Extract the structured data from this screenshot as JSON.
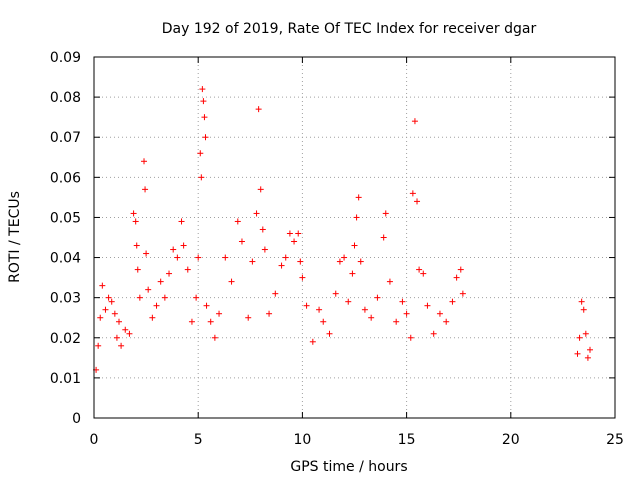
{
  "chart_data": {
    "type": "scatter",
    "title": "Day 192 of 2019, Rate Of TEC Index for receiver dgar",
    "xlabel": "GPS time / hours",
    "ylabel": "ROTI / TECUs",
    "xlim": [
      0,
      25
    ],
    "ylim": [
      0,
      0.09
    ],
    "x_ticks": [
      "0",
      "5",
      "10",
      "15",
      "20",
      "25"
    ],
    "y_ticks": [
      "0",
      "0.01",
      "0.02",
      "0.03",
      "0.04",
      "0.05",
      "0.06",
      "0.07",
      "0.08",
      "0.09"
    ],
    "grid": true,
    "marker": "+",
    "color": "#ff0000",
    "series": [
      {
        "points": [
          [
            0.1,
            0.012
          ],
          [
            0.2,
            0.018
          ],
          [
            0.3,
            0.025
          ],
          [
            0.4,
            0.033
          ],
          [
            0.55,
            0.027
          ],
          [
            0.7,
            0.03
          ],
          [
            0.85,
            0.029
          ],
          [
            1.0,
            0.026
          ],
          [
            1.1,
            0.02
          ],
          [
            1.2,
            0.024
          ],
          [
            1.3,
            0.018
          ],
          [
            1.5,
            0.022
          ],
          [
            1.7,
            0.021
          ],
          [
            1.9,
            0.051
          ],
          [
            2.0,
            0.049
          ],
          [
            2.05,
            0.043
          ],
          [
            2.1,
            0.037
          ],
          [
            2.2,
            0.03
          ],
          [
            2.4,
            0.064
          ],
          [
            2.45,
            0.057
          ],
          [
            2.5,
            0.041
          ],
          [
            2.6,
            0.032
          ],
          [
            2.8,
            0.025
          ],
          [
            3.0,
            0.028
          ],
          [
            3.2,
            0.034
          ],
          [
            3.4,
            0.03
          ],
          [
            3.6,
            0.036
          ],
          [
            3.8,
            0.042
          ],
          [
            4.0,
            0.04
          ],
          [
            4.2,
            0.049
          ],
          [
            4.3,
            0.043
          ],
          [
            4.5,
            0.037
          ],
          [
            4.7,
            0.024
          ],
          [
            4.9,
            0.03
          ],
          [
            5.0,
            0.04
          ],
          [
            5.1,
            0.066
          ],
          [
            5.15,
            0.06
          ],
          [
            5.2,
            0.082
          ],
          [
            5.25,
            0.079
          ],
          [
            5.3,
            0.075
          ],
          [
            5.35,
            0.07
          ],
          [
            5.4,
            0.028
          ],
          [
            5.6,
            0.024
          ],
          [
            5.8,
            0.02
          ],
          [
            6.0,
            0.026
          ],
          [
            6.3,
            0.04
          ],
          [
            6.6,
            0.034
          ],
          [
            6.9,
            0.049
          ],
          [
            7.1,
            0.044
          ],
          [
            7.4,
            0.025
          ],
          [
            7.6,
            0.039
          ],
          [
            7.8,
            0.051
          ],
          [
            7.9,
            0.077
          ],
          [
            8.0,
            0.057
          ],
          [
            8.1,
            0.047
          ],
          [
            8.2,
            0.042
          ],
          [
            8.4,
            0.026
          ],
          [
            8.7,
            0.031
          ],
          [
            9.0,
            0.038
          ],
          [
            9.2,
            0.04
          ],
          [
            9.4,
            0.046
          ],
          [
            9.6,
            0.044
          ],
          [
            9.8,
            0.046
          ],
          [
            9.9,
            0.039
          ],
          [
            10.0,
            0.035
          ],
          [
            10.2,
            0.028
          ],
          [
            10.5,
            0.019
          ],
          [
            10.8,
            0.027
          ],
          [
            11.0,
            0.024
          ],
          [
            11.3,
            0.021
          ],
          [
            11.6,
            0.031
          ],
          [
            11.8,
            0.039
          ],
          [
            12.0,
            0.04
          ],
          [
            12.2,
            0.029
          ],
          [
            12.4,
            0.036
          ],
          [
            12.5,
            0.043
          ],
          [
            12.6,
            0.05
          ],
          [
            12.7,
            0.055
          ],
          [
            12.8,
            0.039
          ],
          [
            13.0,
            0.027
          ],
          [
            13.3,
            0.025
          ],
          [
            13.6,
            0.03
          ],
          [
            13.9,
            0.045
          ],
          [
            14.0,
            0.051
          ],
          [
            14.2,
            0.034
          ],
          [
            14.5,
            0.024
          ],
          [
            14.8,
            0.029
          ],
          [
            15.0,
            0.026
          ],
          [
            15.2,
            0.02
          ],
          [
            15.3,
            0.056
          ],
          [
            15.4,
            0.074
          ],
          [
            15.5,
            0.054
          ],
          [
            15.6,
            0.037
          ],
          [
            15.8,
            0.036
          ],
          [
            16.0,
            0.028
          ],
          [
            16.3,
            0.021
          ],
          [
            16.6,
            0.026
          ],
          [
            16.9,
            0.024
          ],
          [
            17.2,
            0.029
          ],
          [
            17.4,
            0.035
          ],
          [
            17.6,
            0.037
          ],
          [
            17.7,
            0.031
          ],
          [
            23.2,
            0.016
          ],
          [
            23.3,
            0.02
          ],
          [
            23.4,
            0.029
          ],
          [
            23.5,
            0.027
          ],
          [
            23.6,
            0.021
          ],
          [
            23.7,
            0.015
          ],
          [
            23.8,
            0.017
          ]
        ]
      }
    ]
  }
}
